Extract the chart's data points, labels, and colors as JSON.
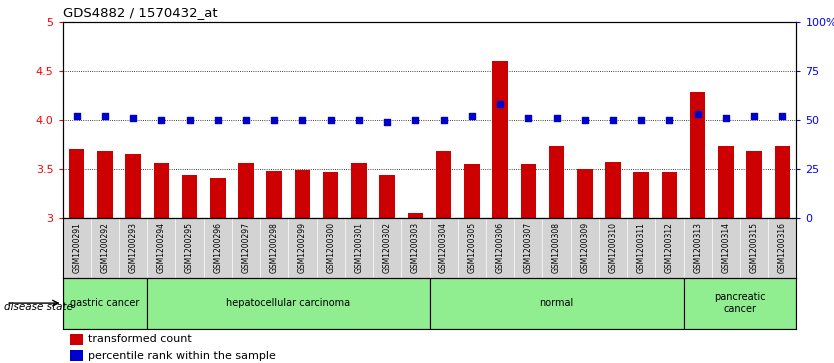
{
  "title": "GDS4882 / 1570432_at",
  "samples": [
    "GSM1200291",
    "GSM1200292",
    "GSM1200293",
    "GSM1200294",
    "GSM1200295",
    "GSM1200296",
    "GSM1200297",
    "GSM1200298",
    "GSM1200299",
    "GSM1200300",
    "GSM1200301",
    "GSM1200302",
    "GSM1200303",
    "GSM1200304",
    "GSM1200305",
    "GSM1200306",
    "GSM1200307",
    "GSM1200308",
    "GSM1200309",
    "GSM1200310",
    "GSM1200311",
    "GSM1200312",
    "GSM1200313",
    "GSM1200314",
    "GSM1200315",
    "GSM1200316"
  ],
  "bar_values": [
    3.7,
    3.68,
    3.65,
    3.56,
    3.44,
    3.41,
    3.56,
    3.48,
    3.49,
    3.47,
    3.56,
    3.44,
    3.05,
    3.68,
    3.55,
    4.6,
    3.55,
    3.73,
    3.5,
    3.57,
    3.47,
    3.47,
    4.28,
    3.73,
    3.68,
    3.73
  ],
  "dot_values_pct": [
    52,
    52,
    51,
    50,
    50,
    50,
    50,
    50,
    50,
    50,
    50,
    49,
    50,
    50,
    52,
    58,
    51,
    51,
    50,
    50,
    50,
    50,
    53,
    51,
    52,
    52
  ],
  "bar_color": "#cc0000",
  "dot_color": "#0000cc",
  "ylim_left": [
    3.0,
    5.0
  ],
  "ylim_right": [
    0,
    100
  ],
  "yticks_left": [
    3.0,
    3.5,
    4.0,
    4.5,
    5.0
  ],
  "yticks_right": [
    0,
    25,
    50,
    75,
    100
  ],
  "ytick_labels_right": [
    "0",
    "25",
    "50",
    "75",
    "100%"
  ],
  "grid_values": [
    3.5,
    4.0,
    4.5
  ],
  "disease_groups": [
    {
      "label": "gastric cancer",
      "start": 0,
      "end": 3
    },
    {
      "label": "hepatocellular carcinoma",
      "start": 3,
      "end": 13
    },
    {
      "label": "normal",
      "start": 13,
      "end": 22
    },
    {
      "label": "pancreatic\ncancer",
      "start": 22,
      "end": 26
    }
  ],
  "disease_state_label": "disease state",
  "legend_bar_label": "transformed count",
  "legend_dot_label": "percentile rank within the sample",
  "bar_bottom": 3.0,
  "green_color": "#90EE90",
  "gray_color": "#d3d3d3",
  "background_color": "#ffffff"
}
